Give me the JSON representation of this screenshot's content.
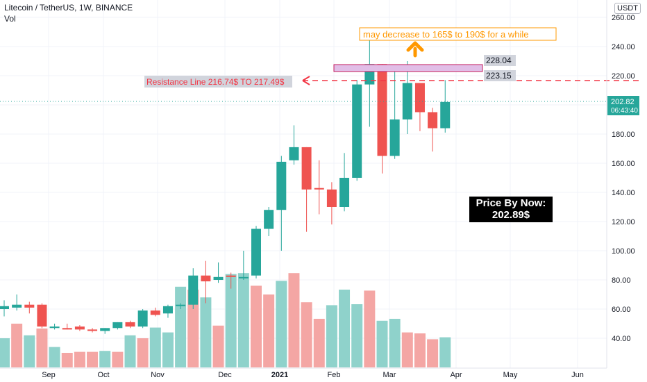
{
  "header": {
    "symbol_line": "Litecoin / TetherUS, 1W, BINANCE",
    "volume_label": "Vol",
    "currency": "USDT"
  },
  "colors": {
    "up": "#26a69a",
    "down": "#ef5350",
    "vol_up": "#8fd2cb",
    "vol_down": "#f4a6a4",
    "resistance": "#f23645",
    "forecast": "#ff9800",
    "zone_fill": "#e1bee7",
    "zone_border": "#c2185b",
    "price_line": "#26a69a"
  },
  "annotations": {
    "forecast_note": "may decrease to 165$ to 190$ for a while",
    "resistance_note": "Resistance Line 216.74$ TO 217.49$",
    "level_top": "228.04",
    "level_bottom": "223.15",
    "price_box_line1": "Price By Now:",
    "price_box_line2": "202.89$"
  },
  "last_price": {
    "value": "202.82",
    "countdown": "06:43:40"
  },
  "chart_data": {
    "type": "candlestick",
    "title": "Litecoin / TetherUS, 1W, BINANCE",
    "ylim": [
      25,
      265
    ],
    "y_ticks": [
      "260.00",
      "240.00",
      "220.00",
      "200.00",
      "180.00",
      "160.00",
      "140.00",
      "120.00",
      "100.00",
      "80.00",
      "60.00",
      "40.00"
    ],
    "x_ticks": [
      "Sep",
      "Oct",
      "Nov",
      "Dec",
      "2021",
      "Feb",
      "Mar",
      "Apr",
      "May",
      "Jun"
    ],
    "candles": [
      {
        "o": 60,
        "h": 66,
        "l": 55,
        "c": 62
      },
      {
        "o": 61,
        "h": 70,
        "l": 59,
        "c": 63
      },
      {
        "o": 63,
        "h": 65,
        "l": 57,
        "c": 61
      },
      {
        "o": 63,
        "h": 64,
        "l": 47,
        "c": 48
      },
      {
        "o": 47,
        "h": 50,
        "l": 46,
        "c": 48
      },
      {
        "o": 47,
        "h": 50,
        "l": 46,
        "c": 46
      },
      {
        "o": 48,
        "h": 49,
        "l": 45,
        "c": 46
      },
      {
        "o": 46,
        "h": 47,
        "l": 44,
        "c": 45
      },
      {
        "o": 45,
        "h": 47,
        "l": 43,
        "c": 47
      },
      {
        "o": 47,
        "h": 51,
        "l": 46,
        "c": 51
      },
      {
        "o": 51,
        "h": 52,
        "l": 47,
        "c": 48
      },
      {
        "o": 48,
        "h": 60,
        "l": 47,
        "c": 59
      },
      {
        "o": 59,
        "h": 61,
        "l": 55,
        "c": 56
      },
      {
        "o": 57,
        "h": 63,
        "l": 54,
        "c": 62
      },
      {
        "o": 62,
        "h": 64,
        "l": 60,
        "c": 63
      },
      {
        "o": 63,
        "h": 88,
        "l": 60,
        "c": 83
      },
      {
        "o": 83,
        "h": 93,
        "l": 64,
        "c": 79
      },
      {
        "o": 80,
        "h": 92,
        "l": 78,
        "c": 82
      },
      {
        "o": 83,
        "h": 85,
        "l": 74,
        "c": 82
      },
      {
        "o": 82,
        "h": 100,
        "l": 80,
        "c": 82
      },
      {
        "o": 83,
        "h": 117,
        "l": 81,
        "c": 115
      },
      {
        "o": 115,
        "h": 130,
        "l": 110,
        "c": 128
      },
      {
        "o": 128,
        "h": 165,
        "l": 100,
        "c": 161
      },
      {
        "o": 162,
        "h": 186,
        "l": 159,
        "c": 171
      },
      {
        "o": 171,
        "h": 171,
        "l": 113,
        "c": 142
      },
      {
        "o": 143,
        "h": 162,
        "l": 125,
        "c": 142
      },
      {
        "o": 142,
        "h": 147,
        "l": 118,
        "c": 130
      },
      {
        "o": 130,
        "h": 167,
        "l": 127,
        "c": 150
      },
      {
        "o": 150,
        "h": 217,
        "l": 148,
        "c": 214
      },
      {
        "o": 214,
        "h": 245,
        "l": 185,
        "c": 228
      },
      {
        "o": 228,
        "h": 228,
        "l": 153,
        "c": 165
      },
      {
        "o": 165,
        "h": 224,
        "l": 163,
        "c": 190
      },
      {
        "o": 190,
        "h": 230,
        "l": 180,
        "c": 215
      },
      {
        "o": 215,
        "h": 215,
        "l": 182,
        "c": 195
      },
      {
        "o": 195,
        "h": 198,
        "l": 168,
        "c": 184
      },
      {
        "o": 184,
        "h": 217,
        "l": 181,
        "c": 202
      }
    ],
    "volume": [
      {
        "v": 30,
        "up": true
      },
      {
        "v": 45,
        "up": false
      },
      {
        "v": 33,
        "up": true
      },
      {
        "v": 40,
        "up": false
      },
      {
        "v": 21,
        "up": true
      },
      {
        "v": 15,
        "up": false
      },
      {
        "v": 16,
        "up": false
      },
      {
        "v": 16,
        "up": false
      },
      {
        "v": 17,
        "up": true
      },
      {
        "v": 16,
        "up": false
      },
      {
        "v": 33,
        "up": true
      },
      {
        "v": 30,
        "up": false
      },
      {
        "v": 41,
        "up": true
      },
      {
        "v": 36,
        "up": true
      },
      {
        "v": 83,
        "up": true
      },
      {
        "v": 80,
        "up": false
      },
      {
        "v": 72,
        "up": true
      },
      {
        "v": 43,
        "up": false
      },
      {
        "v": 96,
        "up": true
      },
      {
        "v": 97,
        "up": true
      },
      {
        "v": 84,
        "up": false
      },
      {
        "v": 75,
        "up": false
      },
      {
        "v": 89,
        "up": true
      },
      {
        "v": 97,
        "up": false
      },
      {
        "v": 67,
        "up": false
      },
      {
        "v": 50,
        "up": false
      },
      {
        "v": 64,
        "up": true
      },
      {
        "v": 80,
        "up": true
      },
      {
        "v": 65,
        "up": true
      },
      {
        "v": 79,
        "up": false
      },
      {
        "v": 48,
        "up": true
      },
      {
        "v": 50,
        "up": true
      },
      {
        "v": 36,
        "up": false
      },
      {
        "v": 35,
        "up": false
      },
      {
        "v": 29,
        "up": false
      },
      {
        "v": 31,
        "up": true
      }
    ]
  }
}
